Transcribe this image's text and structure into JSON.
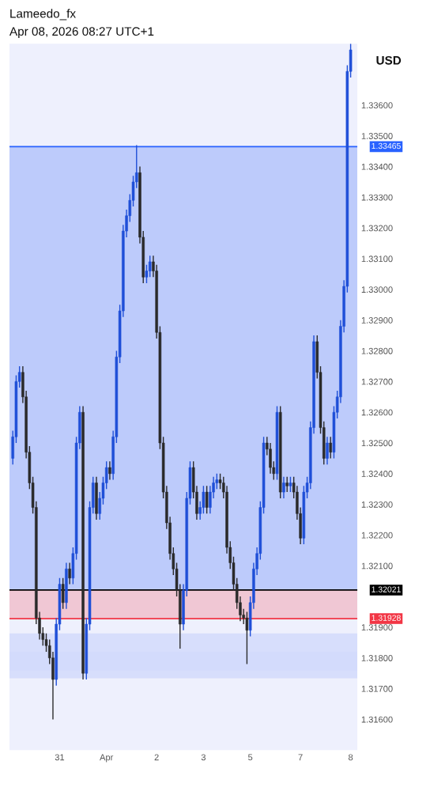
{
  "chart_data": {
    "type": "candlestick",
    "title": "Lameedo_fx",
    "subtitle": "Apr 08, 2026 08:27 UTC+1",
    "ylabel": "USD",
    "categories": [
      null,
      null,
      null,
      null,
      null,
      null,
      null,
      null,
      null,
      null,
      null,
      null,
      null,
      null,
      "31",
      null,
      null,
      null,
      null,
      null,
      null,
      null,
      null,
      null,
      null,
      null,
      null,
      null,
      "Apr",
      null,
      null,
      null,
      null,
      null,
      null,
      null,
      null,
      null,
      null,
      null,
      null,
      null,
      null,
      "2",
      null,
      null,
      null,
      null,
      null,
      null,
      null,
      null,
      null,
      null,
      null,
      null,
      null,
      "3",
      null,
      null,
      null,
      null,
      null,
      null,
      null,
      null,
      null,
      null,
      null,
      null,
      null,
      "5",
      null,
      null,
      null,
      null,
      null,
      null,
      null,
      null,
      null,
      null,
      null,
      null,
      null,
      null,
      "7",
      null,
      null,
      null,
      null,
      null,
      null,
      null,
      null,
      null,
      null,
      null,
      null,
      null,
      null,
      "8"
    ],
    "ohlc": [
      [
        1.3245,
        1.3254,
        1.3243,
        1.3252
      ],
      [
        1.3252,
        1.3272,
        1.325,
        1.327
      ],
      [
        1.327,
        1.3275,
        1.3268,
        1.3273
      ],
      [
        1.3273,
        1.3275,
        1.3263,
        1.3265
      ],
      [
        1.3265,
        1.3267,
        1.3245,
        1.3247
      ],
      [
        1.3247,
        1.3249,
        1.3235,
        1.3237
      ],
      [
        1.3237,
        1.3239,
        1.3227,
        1.3229
      ],
      [
        1.3229,
        1.3231,
        1.3191,
        1.3193
      ],
      [
        1.3193,
        1.3195,
        1.3186,
        1.3188
      ],
      [
        1.3188,
        1.319,
        1.3184,
        1.3186
      ],
      [
        1.3186,
        1.3188,
        1.3182,
        1.3184
      ],
      [
        1.3184,
        1.3186,
        1.3178,
        1.318
      ],
      [
        1.318,
        1.3182,
        1.316,
        1.3173
      ],
      [
        1.3173,
        1.3193,
        1.3171,
        1.3191
      ],
      [
        1.3191,
        1.3206,
        1.3189,
        1.3204
      ],
      [
        1.3204,
        1.3206,
        1.3196,
        1.3198
      ],
      [
        1.3198,
        1.3211,
        1.3196,
        1.3209
      ],
      [
        1.3209,
        1.3211,
        1.3204,
        1.3206
      ],
      [
        1.3206,
        1.3216,
        1.3204,
        1.3214
      ],
      [
        1.3214,
        1.3252,
        1.3212,
        1.325
      ],
      [
        1.325,
        1.3262,
        1.3248,
        1.326
      ],
      [
        1.326,
        1.3262,
        1.3173,
        1.3175
      ],
      [
        1.3175,
        1.3193,
        1.3173,
        1.3191
      ],
      [
        1.3191,
        1.3231,
        1.3189,
        1.3229
      ],
      [
        1.3229,
        1.3239,
        1.3227,
        1.3237
      ],
      [
        1.3237,
        1.3239,
        1.3225,
        1.3227
      ],
      [
        1.3227,
        1.3234,
        1.3225,
        1.3232
      ],
      [
        1.3232,
        1.3239,
        1.323,
        1.3237
      ],
      [
        1.3237,
        1.3244,
        1.3235,
        1.3242
      ],
      [
        1.3242,
        1.3244,
        1.3238,
        1.324
      ],
      [
        1.324,
        1.3254,
        1.3238,
        1.3252
      ],
      [
        1.3252,
        1.328,
        1.325,
        1.3278
      ],
      [
        1.3278,
        1.3295,
        1.3276,
        1.3293
      ],
      [
        1.3293,
        1.3321,
        1.3291,
        1.3319
      ],
      [
        1.3319,
        1.3326,
        1.3317,
        1.3324
      ],
      [
        1.3324,
        1.3331,
        1.3322,
        1.3329
      ],
      [
        1.3329,
        1.3337,
        1.3327,
        1.3335
      ],
      [
        1.3335,
        1.3347,
        1.3333,
        1.3338
      ],
      [
        1.3338,
        1.334,
        1.3315,
        1.3317
      ],
      [
        1.3317,
        1.3319,
        1.3302,
        1.3304
      ],
      [
        1.3304,
        1.3308,
        1.3302,
        1.3306
      ],
      [
        1.3306,
        1.3311,
        1.3304,
        1.3309
      ],
      [
        1.3309,
        1.3311,
        1.3304,
        1.3306
      ],
      [
        1.3306,
        1.3308,
        1.3284,
        1.3286
      ],
      [
        1.3286,
        1.3288,
        1.3248,
        1.325
      ],
      [
        1.325,
        1.3252,
        1.3232,
        1.3234
      ],
      [
        1.3234,
        1.3236,
        1.3222,
        1.3224
      ],
      [
        1.3224,
        1.3226,
        1.3212,
        1.3214
      ],
      [
        1.3214,
        1.3216,
        1.3207,
        1.3209
      ],
      [
        1.3209,
        1.3211,
        1.32,
        1.3202
      ],
      [
        1.3202,
        1.3204,
        1.3183,
        1.3191
      ],
      [
        1.3191,
        1.3204,
        1.3189,
        1.3202
      ],
      [
        1.3202,
        1.3234,
        1.32,
        1.3232
      ],
      [
        1.3232,
        1.3244,
        1.323,
        1.3242
      ],
      [
        1.3242,
        1.3244,
        1.3232,
        1.3234
      ],
      [
        1.3234,
        1.3236,
        1.3225,
        1.3227
      ],
      [
        1.3227,
        1.3231,
        1.3225,
        1.3229
      ],
      [
        1.3229,
        1.3236,
        1.3227,
        1.3234
      ],
      [
        1.3234,
        1.3236,
        1.3227,
        1.3229
      ],
      [
        1.3229,
        1.3236,
        1.3227,
        1.3234
      ],
      [
        1.3234,
        1.3239,
        1.3232,
        1.3237
      ],
      [
        1.3237,
        1.324,
        1.3235,
        1.3238
      ],
      [
        1.3238,
        1.324,
        1.3235,
        1.3237
      ],
      [
        1.3237,
        1.3239,
        1.3232,
        1.3234
      ],
      [
        1.3234,
        1.3236,
        1.3214,
        1.3216
      ],
      [
        1.3216,
        1.3218,
        1.3209,
        1.3211
      ],
      [
        1.3211,
        1.3213,
        1.3202,
        1.3204
      ],
      [
        1.3204,
        1.3206,
        1.3196,
        1.3198
      ],
      [
        1.3198,
        1.32,
        1.3192,
        1.3194
      ],
      [
        1.3194,
        1.3196,
        1.3191,
        1.3193
      ],
      [
        1.3193,
        1.3195,
        1.3178,
        1.3189
      ],
      [
        1.3189,
        1.32,
        1.3187,
        1.3198
      ],
      [
        1.3198,
        1.3211,
        1.3196,
        1.3209
      ],
      [
        1.3209,
        1.3216,
        1.3207,
        1.3214
      ],
      [
        1.3214,
        1.3231,
        1.3212,
        1.3229
      ],
      [
        1.3229,
        1.3252,
        1.3227,
        1.325
      ],
      [
        1.325,
        1.3252,
        1.3246,
        1.3248
      ],
      [
        1.3248,
        1.325,
        1.324,
        1.3242
      ],
      [
        1.3242,
        1.3244,
        1.3238,
        1.324
      ],
      [
        1.324,
        1.3262,
        1.3238,
        1.326
      ],
      [
        1.326,
        1.3262,
        1.3232,
        1.3234
      ],
      [
        1.3234,
        1.3239,
        1.3232,
        1.3237
      ],
      [
        1.3237,
        1.3239,
        1.3234,
        1.3236
      ],
      [
        1.3236,
        1.3239,
        1.3234,
        1.3237
      ],
      [
        1.3237,
        1.3239,
        1.3232,
        1.3234
      ],
      [
        1.3234,
        1.3236,
        1.3225,
        1.3227
      ],
      [
        1.3227,
        1.3229,
        1.3217,
        1.3219
      ],
      [
        1.3219,
        1.3236,
        1.3217,
        1.3234
      ],
      [
        1.3234,
        1.3239,
        1.3232,
        1.3237
      ],
      [
        1.3237,
        1.3257,
        1.3235,
        1.3255
      ],
      [
        1.3255,
        1.3285,
        1.3253,
        1.3283
      ],
      [
        1.3283,
        1.3285,
        1.3271,
        1.3273
      ],
      [
        1.3273,
        1.3275,
        1.3253,
        1.3255
      ],
      [
        1.3255,
        1.3257,
        1.3243,
        1.3245
      ],
      [
        1.3245,
        1.3252,
        1.3243,
        1.325
      ],
      [
        1.325,
        1.3252,
        1.3245,
        1.3247
      ],
      [
        1.3247,
        1.3262,
        1.3245,
        1.326
      ],
      [
        1.326,
        1.3267,
        1.3258,
        1.3265
      ],
      [
        1.3265,
        1.329,
        1.3263,
        1.3288
      ],
      [
        1.3288,
        1.3303,
        1.3286,
        1.3301
      ],
      [
        1.3301,
        1.3373,
        1.3299,
        1.3371
      ],
      [
        1.3371,
        1.338,
        1.3369,
        1.3378
      ]
    ],
    "ylim": [
      1.315,
      1.338
    ],
    "yticks": [
      {
        "value": 1.316,
        "label": "1.31600"
      },
      {
        "value": 1.317,
        "label": "1.31700"
      },
      {
        "value": 1.318,
        "label": "1.31800"
      },
      {
        "value": 1.319,
        "label": "1.31900"
      },
      {
        "value": 1.321,
        "label": "1.32100"
      },
      {
        "value": 1.322,
        "label": "1.32200"
      },
      {
        "value": 1.323,
        "label": "1.32300"
      },
      {
        "value": 1.324,
        "label": "1.32400"
      },
      {
        "value": 1.325,
        "label": "1.32500"
      },
      {
        "value": 1.326,
        "label": "1.32600"
      },
      {
        "value": 1.327,
        "label": "1.32700"
      },
      {
        "value": 1.328,
        "label": "1.32800"
      },
      {
        "value": 1.329,
        "label": "1.32900"
      },
      {
        "value": 1.33,
        "label": "1.33000"
      },
      {
        "value": 1.331,
        "label": "1.33100"
      },
      {
        "value": 1.332,
        "label": "1.33200"
      },
      {
        "value": 1.333,
        "label": "1.33300"
      },
      {
        "value": 1.334,
        "label": "1.33400"
      },
      {
        "value": 1.335,
        "label": "1.33500"
      },
      {
        "value": 1.336,
        "label": "1.33600"
      }
    ],
    "ref_lines": [
      {
        "axis": "y",
        "value": 1.33465,
        "label": "1.33465",
        "color": "#2962ff"
      },
      {
        "axis": "y",
        "value": 1.32021,
        "label": "1.32021",
        "color": "#000000"
      },
      {
        "axis": "y",
        "value": 1.31928,
        "label": "1.31928",
        "color": "#f23645"
      }
    ],
    "bands": [
      {
        "axis": "y",
        "from": 1.32021,
        "to": 1.33465,
        "color": "#b4c4fa"
      },
      {
        "axis": "y",
        "from": 1.31928,
        "to": 1.32021,
        "color": "#f0c0cc"
      },
      {
        "axis": "y",
        "from": 1.31734,
        "to": 1.3182,
        "color": "#d2dafc"
      },
      {
        "axis": "y",
        "from": 1.31759,
        "to": 1.3188,
        "color": "#d2dafc"
      }
    ],
    "grid": false
  }
}
